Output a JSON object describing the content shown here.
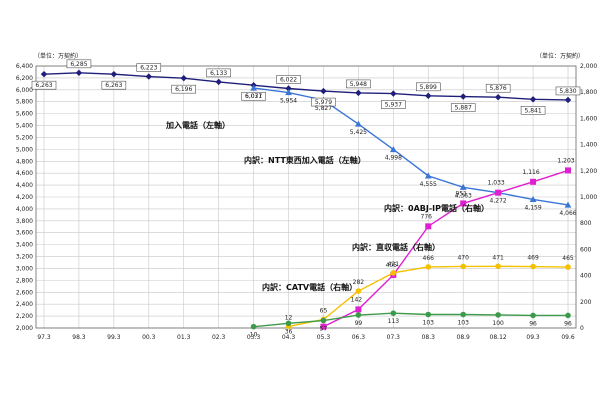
{
  "chart_data": {
    "type": "line",
    "title": "",
    "left_axis_unit": "（単位：万契約）",
    "right_axis_unit": "（単位：万契約）",
    "x": [
      "97.3",
      "98.3",
      "99.3",
      "00.3",
      "01.3",
      "02.3",
      "03.3",
      "04.3",
      "05.3",
      "06.3",
      "07.3",
      "08.3",
      "08.9",
      "08.12",
      "09.3",
      "09.6"
    ],
    "ylim_left": [
      2000,
      6400
    ],
    "ylim_right": [
      0,
      2000
    ],
    "left_ticks": [
      "2,000",
      "2,200",
      "2,400",
      "2,600",
      "2,800",
      "3,000",
      "3,200",
      "3,400",
      "3,600",
      "3,800",
      "4,000",
      "4,200",
      "4,400",
      "4,600",
      "4,800",
      "5,000",
      "5,200",
      "5,400",
      "5,600",
      "5,800",
      "6,000",
      "6,200",
      "6,400"
    ],
    "right_ticks": [
      "0",
      "200",
      "400",
      "600",
      "800",
      "1,000",
      "1,200",
      "1,400",
      "1,600",
      "1,800",
      "2,000"
    ],
    "grid": true,
    "series": [
      {
        "name": "加入電話（左軸）",
        "axis": "left",
        "color": "#1f1f7a",
        "marker": "diamond",
        "values": [
          6263,
          6285,
          6263,
          6223,
          6196,
          6133,
          6077,
          6022,
          5979,
          5948,
          5937,
          5899,
          5887,
          5876,
          5841,
          5830
        ],
        "labels": [
          "6,263",
          "6,285",
          "6,263",
          "6,223",
          "6,196",
          "6,133",
          "6,077",
          "6,022",
          "5,979",
          "5,948",
          "5,937",
          "5,899",
          "5,887",
          "5,876",
          "5,841",
          "5,830"
        ]
      },
      {
        "name": "内訳：NTT東西加入電話（左軸）",
        "axis": "left",
        "color": "#3a76d6",
        "marker": "triangle",
        "values": [
          null,
          null,
          null,
          null,
          null,
          null,
          6031,
          5954,
          5827,
          5425,
          4998,
          4555,
          4363,
          4272,
          4159,
          4066
        ],
        "labels": [
          "",
          "",
          "",
          "",
          "",
          "",
          "6,031",
          "5,954",
          "5,827",
          "5,425",
          "4,998",
          "4,555",
          "4,363",
          "4,272",
          "4,159",
          "4,066"
        ]
      },
      {
        "name": "内訳：0ABJ-IP電話（右軸）",
        "axis": "right",
        "color": "#e020d0",
        "marker": "square",
        "values": [
          null,
          null,
          null,
          null,
          null,
          null,
          null,
          null,
          10,
          142,
          405,
          776,
          951,
          1033,
          1116,
          1203
        ],
        "labels": [
          "",
          "",
          "",
          "",
          "",
          "",
          "",
          "",
          "",
          "142",
          "405",
          "776",
          "951",
          "1,033",
          "1,116",
          "1,203"
        ]
      },
      {
        "name": "内訳：直収電話（右軸）",
        "axis": "right",
        "color": "#f5c000",
        "marker": "circle",
        "values": [
          null,
          null,
          null,
          null,
          null,
          null,
          null,
          12,
          65,
          282,
          421,
          466,
          470,
          471,
          469,
          465
        ],
        "labels": [
          "",
          "",
          "",
          "",
          "",
          "",
          "",
          "12",
          "65",
          "282",
          "421",
          "466",
          "470",
          "471",
          "469",
          "465"
        ]
      },
      {
        "name": "内訳：CATV電話（右軸）",
        "axis": "right",
        "color": "#3c9a4a",
        "marker": "circle",
        "values": [
          null,
          null,
          null,
          null,
          null,
          null,
          10,
          36,
          57,
          99,
          113,
          103,
          103,
          100,
          96,
          96
        ],
        "labels": [
          "",
          "",
          "",
          "",
          "",
          "",
          "10",
          "36",
          "57",
          "99",
          "113",
          "103",
          "103",
          "100",
          "96",
          "96"
        ]
      }
    ]
  }
}
